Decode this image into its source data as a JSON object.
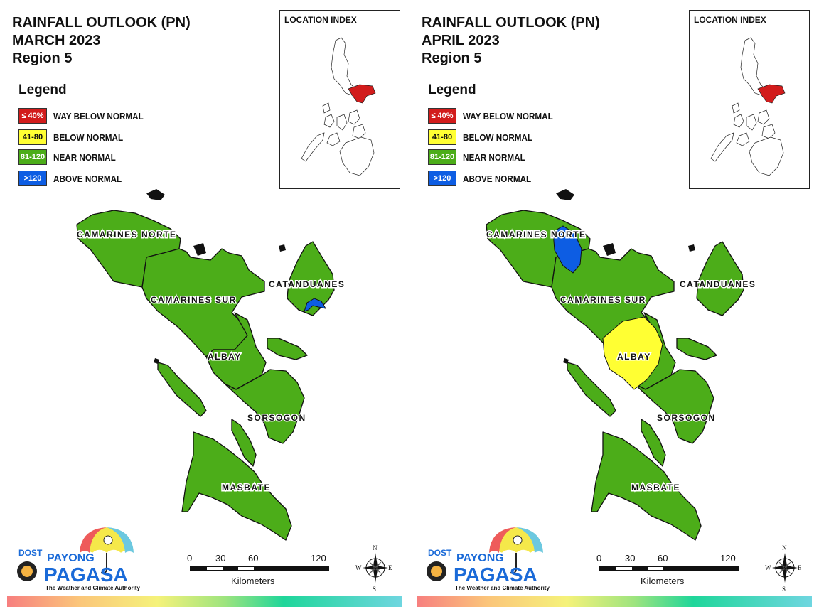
{
  "colors": {
    "way_below_normal": "#d21c1c",
    "below_normal": "#ffff33",
    "near_normal": "#4cad19",
    "above_normal": "#0d5de3"
  },
  "legend": {
    "title": "Legend",
    "items": [
      {
        "range": "≤ 40%",
        "label": "WAY BELOW NORMAL",
        "color": "#d21c1c"
      },
      {
        "range": "41-80",
        "label": "BELOW NORMAL",
        "color": "#ffff33"
      },
      {
        "range": "81-120",
        "label": "NEAR NORMAL",
        "color": "#4cad19"
      },
      {
        "range": ">120",
        "label": "ABOVE NORMAL",
        "color": "#0d5de3"
      }
    ]
  },
  "location_index": {
    "title": "LOCATION INDEX"
  },
  "provinces": {
    "camarines_norte": "CAMARINES NORTE",
    "camarines_sur": "CAMARINES SUR",
    "catanduanes": "CATANDUANES",
    "albay": "ALBAY",
    "sorsogon": "SORSOGON",
    "masbate": "MASBATE"
  },
  "scalebar": {
    "ticks": [
      "0",
      "30",
      "60",
      "120"
    ],
    "unit": "Kilometers"
  },
  "compass": {
    "n": "N",
    "s": "S",
    "e": "E",
    "w": "W"
  },
  "logo": {
    "dost": "DOST",
    "payong": "PAYONG",
    "pagasa": "PAGASA",
    "tagline": "The Weather and Climate Authority"
  },
  "panels": [
    {
      "title_line1": "RAINFALL OUTLOOK (PN)",
      "title_line2": "MARCH 2023",
      "title_line3": "Region 5",
      "categories": {
        "camarines_norte": "near_normal",
        "camarines_sur": "near_normal",
        "catanduanes": "near_normal",
        "albay": "near_normal",
        "sorsogon": "near_normal",
        "masbate": "near_normal"
      }
    },
    {
      "title_line1": "RAINFALL OUTLOOK (PN)",
      "title_line2": "APRIL 2023",
      "title_line3": "Region 5",
      "categories": {
        "camarines_norte": "near_normal",
        "camarines_sur": "near_normal",
        "catanduanes": "near_normal",
        "albay": "below_normal",
        "sorsogon": "near_normal",
        "masbate": "near_normal"
      }
    }
  ]
}
